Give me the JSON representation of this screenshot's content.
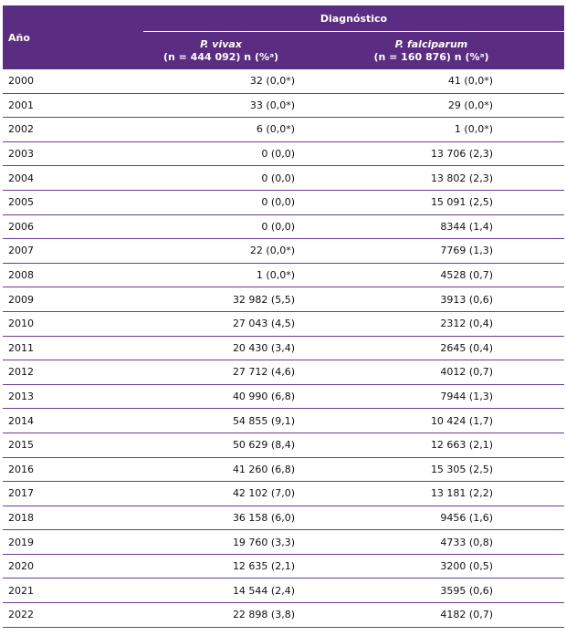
{
  "table": {
    "header": {
      "year": "Año",
      "group": "Diagnóstico",
      "vivax_species": "P. vivax",
      "vivax_n": "(n = 444 092) n (%ᵃ)",
      "falciparum_species": "P. falciparum",
      "falciparum_n": "(n = 160 876) n (%ᵃ)"
    },
    "rows": [
      {
        "year": "2000",
        "vivax": "32 (0,0*)",
        "falciparum": "41 (0,0*)"
      },
      {
        "year": "2001",
        "vivax": "33 (0,0*)",
        "falciparum": "29 (0,0*)"
      },
      {
        "year": "2002",
        "vivax": "6 (0,0*)",
        "falciparum": "1 (0,0*)"
      },
      {
        "year": "2003",
        "vivax": "0 (0,0)",
        "falciparum": "13 706 (2,3)"
      },
      {
        "year": "2004",
        "vivax": "0 (0,0)",
        "falciparum": "13 802 (2,3)"
      },
      {
        "year": "2005",
        "vivax": "0 (0,0)",
        "falciparum": "15 091 (2,5)"
      },
      {
        "year": "2006",
        "vivax": "0 (0,0)",
        "falciparum": "8344 (1,4)"
      },
      {
        "year": "2007",
        "vivax": "22 (0,0*)",
        "falciparum": "7769 (1,3)"
      },
      {
        "year": "2008",
        "vivax": "1 (0,0*)",
        "falciparum": "4528 (0,7)"
      },
      {
        "year": "2009",
        "vivax": "32 982 (5,5)",
        "falciparum": "3913 (0,6)"
      },
      {
        "year": "2010",
        "vivax": "27 043 (4,5)",
        "falciparum": "2312 (0,4)"
      },
      {
        "year": "2011",
        "vivax": "20 430 (3,4)",
        "falciparum": "2645 (0,4)"
      },
      {
        "year": "2012",
        "vivax": "27 712 (4,6)",
        "falciparum": "4012 (0,7)"
      },
      {
        "year": "2013",
        "vivax": "40 990 (6,8)",
        "falciparum": "7944 (1,3)"
      },
      {
        "year": "2014",
        "vivax": "54 855 (9,1)",
        "falciparum": "10 424 (1,7)"
      },
      {
        "year": "2015",
        "vivax": "50 629 (8,4)",
        "falciparum": "12 663 (2,1)"
      },
      {
        "year": "2016",
        "vivax": "41 260 (6,8)",
        "falciparum": "15 305 (2,5)"
      },
      {
        "year": "2017",
        "vivax": "42 102 (7,0)",
        "falciparum": "13 181 (2,2)"
      },
      {
        "year": "2018",
        "vivax": "36 158 (6,0)",
        "falciparum": "9456 (1,6)"
      },
      {
        "year": "2019",
        "vivax": "19 760 (3,3)",
        "falciparum": "4733 (0,8)"
      },
      {
        "year": "2020",
        "vivax": "12 635 (2,1)",
        "falciparum": "3200 (0,5)"
      },
      {
        "year": "2021",
        "vivax": "14 544 (2,4)",
        "falciparum": "3595 (0,6)"
      },
      {
        "year": "2022",
        "vivax": "22 898 (3,8)",
        "falciparum": "4182 (0,7)"
      }
    ]
  }
}
